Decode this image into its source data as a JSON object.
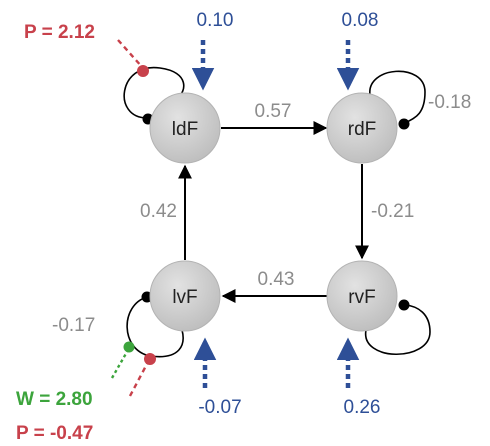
{
  "nodes": {
    "ldf": {
      "label": "ldF"
    },
    "rdf": {
      "label": "rdF"
    },
    "lvf": {
      "label": "lvF"
    },
    "rvf": {
      "label": "rvF"
    }
  },
  "edges": {
    "ldf_rdf": "0.57",
    "rdf_rvf": "-0.21",
    "rvf_lvf": "0.43",
    "lvf_ldf": "0.42"
  },
  "self_loops": {
    "rdf": "-0.18",
    "lvf": "-0.17"
  },
  "inputs": {
    "ldf": "0.10",
    "rdf": "0.08",
    "lvf": "-0.07",
    "rvf": "0.26"
  },
  "modulations": {
    "p_ldf": "P = 2.12",
    "w_lvf": "W = 2.80",
    "p_lvf": "P = -0.47"
  },
  "colors": {
    "node_fill": "#cfcfcf",
    "edge": "#000000",
    "weight_text": "#8c8c8c",
    "input": "#2e4f97",
    "modulation_p": "#c8414b",
    "modulation_w": "#3ca43c"
  }
}
